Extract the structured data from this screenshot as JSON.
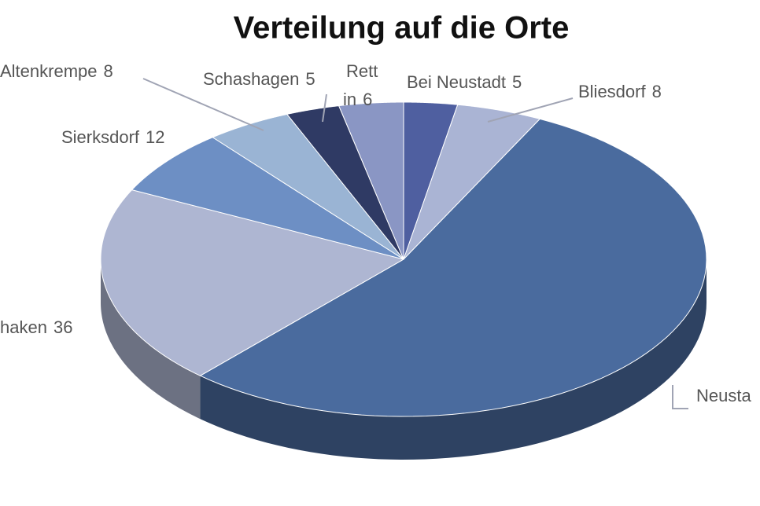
{
  "chart_data": {
    "type": "pie3d",
    "title": "Verteilung auf die Orte",
    "categories": [
      "Bei Neustadt",
      "Bliesdorf",
      "Neusta",
      "haken",
      "Sierksdorf",
      "Altenkrempe",
      "Schashagen",
      [
        "Rett",
        "in"
      ]
    ],
    "values": [
      5,
      8,
      95,
      36,
      12,
      8,
      5,
      6
    ],
    "colors": [
      "#4f5fa0",
      "#aab4d4",
      "#4a6b9e",
      "#aeb6d2",
      "#6d8fc4",
      "#9ab4d4",
      "#2f3a64",
      "#8a96c4"
    ]
  }
}
